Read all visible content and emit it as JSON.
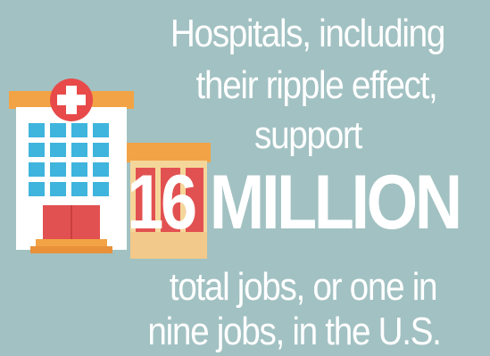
{
  "infographic": {
    "intro_line_1": "Hospitals, including",
    "intro_line_2": "their ripple effect,",
    "intro_line_3": "support",
    "headline": "16 MILLION",
    "outro_line_1": "total jobs, or one in",
    "outro_line_2": "nine jobs, in the U.S."
  },
  "icons": {
    "main": "hospital-building-icon",
    "cross": "medical-cross-icon",
    "secondary": "small-building-icon"
  },
  "colors": {
    "background": "#a2c1c2",
    "text": "#ffffff",
    "building_body": "#ffffff",
    "roof": "#f2a345",
    "cross_circle": "#e84a4a",
    "windows": "#3fb4dd",
    "door": "#e25151",
    "steps": "#f2a345",
    "secondary_building": "#f5d69a"
  }
}
